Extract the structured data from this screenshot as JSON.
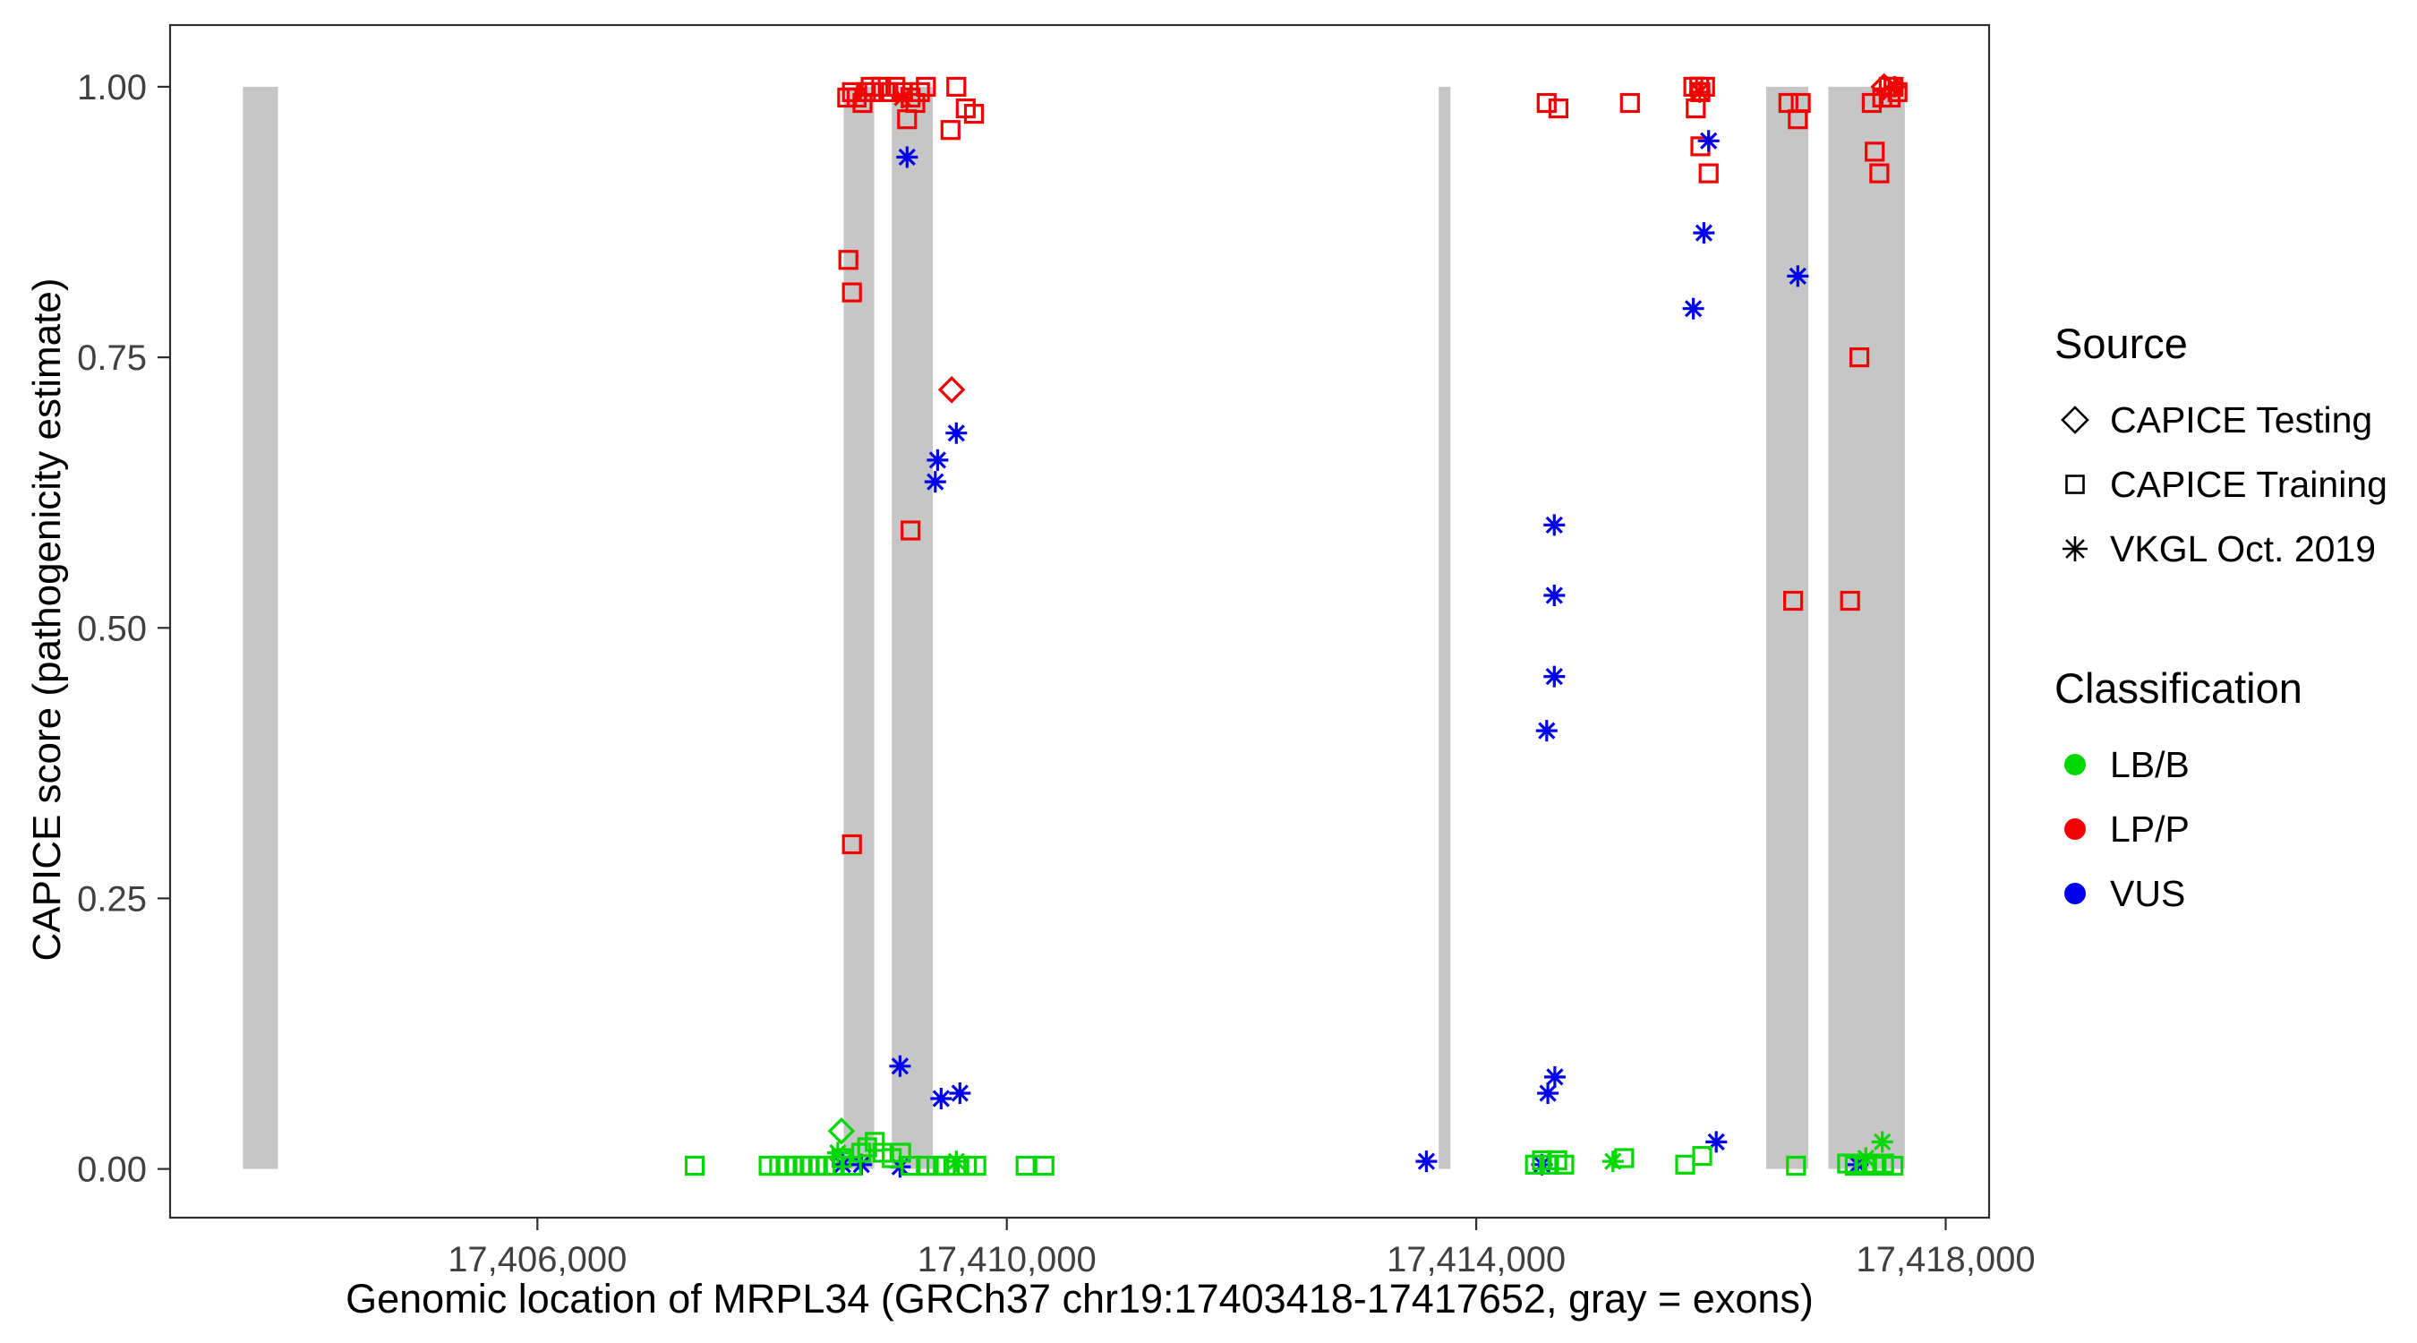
{
  "chart_data": {
    "type": "scatter",
    "title": "",
    "xlabel": "Genomic location of MRPL34 (GRCh37 chr19:17403418-17417652, gray = exons)",
    "ylabel": "CAPICE score (pathogenicity estimate)",
    "x_range": [
      17402870,
      17418370
    ],
    "y_range": [
      -0.045,
      1.057
    ],
    "x_ticks": [
      17406000,
      17410000,
      17414000,
      17418000
    ],
    "x_tick_labels": [
      "17,406,000",
      "17,410,000",
      "17,414,000",
      "17,418,000"
    ],
    "y_ticks": [
      0,
      0.25,
      0.5,
      0.75,
      1.0
    ],
    "y_tick_labels": [
      "0.00",
      "0.25",
      "0.50",
      "0.75",
      "1.00"
    ],
    "grid": false,
    "exon_color": "#C6C6C6",
    "exons": [
      [
        17403490,
        17403790
      ],
      [
        17408610,
        17408870
      ],
      [
        17409020,
        17409370
      ],
      [
        17413680,
        17413780
      ],
      [
        17416470,
        17416830
      ],
      [
        17417000,
        17417652
      ]
    ],
    "colors": {
      "LB/B": "#00D800",
      "LP/P": "#F30000",
      "VUS": "#0000EE"
    },
    "marker_by_source": {
      "testing": "diamond",
      "training": "square",
      "vkgl": "asterisk"
    },
    "points": [
      [
        17408640,
        0.99,
        "training",
        "LP/P"
      ],
      [
        17408680,
        0.995,
        "training",
        "LP/P"
      ],
      [
        17408720,
        0.99,
        "training",
        "LP/P"
      ],
      [
        17408770,
        0.985,
        "training",
        "LP/P"
      ],
      [
        17408800,
        0.995,
        "training",
        "LP/P"
      ],
      [
        17408840,
        1.0,
        "training",
        "LP/P"
      ],
      [
        17408870,
        0.995,
        "training",
        "LP/P"
      ],
      [
        17408930,
        1.0,
        "training",
        "LP/P"
      ],
      [
        17408990,
        0.995,
        "training",
        "LP/P"
      ],
      [
        17409050,
        1.0,
        "training",
        "LP/P"
      ],
      [
        17409110,
        0.995,
        "training",
        "LP/P"
      ],
      [
        17409180,
        0.99,
        "training",
        "LP/P"
      ],
      [
        17409260,
        0.995,
        "training",
        "LP/P"
      ],
      [
        17409310,
        1.0,
        "training",
        "LP/P"
      ],
      [
        17409150,
        0.97,
        "training",
        "LP/P"
      ],
      [
        17409220,
        0.985,
        "training",
        "LP/P"
      ],
      [
        17409570,
        1.0,
        "training",
        "LP/P"
      ],
      [
        17409650,
        0.98,
        "training",
        "LP/P"
      ],
      [
        17409720,
        0.975,
        "training",
        "LP/P"
      ],
      [
        17409520,
        0.96,
        "training",
        "LP/P"
      ],
      [
        17408650,
        0.84,
        "training",
        "LP/P"
      ],
      [
        17408680,
        0.81,
        "training",
        "LP/P"
      ],
      [
        17409180,
        0.59,
        "training",
        "LP/P"
      ],
      [
        17408680,
        0.3,
        "training",
        "LP/P"
      ],
      [
        17414600,
        0.985,
        "training",
        "LP/P"
      ],
      [
        17414700,
        0.98,
        "training",
        "LP/P"
      ],
      [
        17415310,
        0.985,
        "training",
        "LP/P"
      ],
      [
        17415850,
        1.0,
        "training",
        "LP/P"
      ],
      [
        17415900,
        1.0,
        "training",
        "LP/P"
      ],
      [
        17415950,
        1.0,
        "training",
        "LP/P"
      ],
      [
        17415910,
        0.995,
        "training",
        "LP/P"
      ],
      [
        17415870,
        0.98,
        "training",
        "LP/P"
      ],
      [
        17415910,
        0.945,
        "training",
        "LP/P"
      ],
      [
        17415980,
        0.92,
        "training",
        "LP/P"
      ],
      [
        17416660,
        0.985,
        "training",
        "LP/P"
      ],
      [
        17416765,
        0.985,
        "training",
        "LP/P"
      ],
      [
        17416740,
        0.97,
        "training",
        "LP/P"
      ],
      [
        17416700,
        0.525,
        "training",
        "LP/P"
      ],
      [
        17417185,
        0.525,
        "training",
        "LP/P"
      ],
      [
        17417265,
        0.75,
        "training",
        "LP/P"
      ],
      [
        17417395,
        0.94,
        "training",
        "LP/P"
      ],
      [
        17417435,
        0.92,
        "training",
        "LP/P"
      ],
      [
        17417370,
        0.985,
        "training",
        "LP/P"
      ],
      [
        17417460,
        0.99,
        "training",
        "LP/P"
      ],
      [
        17417515,
        1.0,
        "training",
        "LP/P"
      ],
      [
        17417555,
        1.0,
        "training",
        "LP/P"
      ],
      [
        17417590,
        0.995,
        "training",
        "LP/P"
      ],
      [
        17417530,
        0.99,
        "training",
        "LP/P"
      ],
      [
        17409530,
        0.72,
        "testing",
        "LP/P"
      ],
      [
        17417475,
        1.0,
        "testing",
        "LP/P"
      ],
      [
        17409110,
        0.99,
        "vkgl",
        "LP/P"
      ],
      [
        17415905,
        0.995,
        "vkgl",
        "LP/P"
      ],
      [
        17417565,
        1.0,
        "vkgl",
        "LP/P"
      ],
      [
        17409150,
        0.935,
        "vkgl",
        "VUS"
      ],
      [
        17409570,
        0.68,
        "vkgl",
        "VUS"
      ],
      [
        17409410,
        0.655,
        "vkgl",
        "VUS"
      ],
      [
        17409390,
        0.635,
        "vkgl",
        "VUS"
      ],
      [
        17409090,
        0.095,
        "vkgl",
        "VUS"
      ],
      [
        17409600,
        0.07,
        "vkgl",
        "VUS"
      ],
      [
        17409440,
        0.065,
        "vkgl",
        "VUS"
      ],
      [
        17408600,
        0.004,
        "vkgl",
        "VUS"
      ],
      [
        17408760,
        0.004,
        "vkgl",
        "VUS"
      ],
      [
        17409090,
        0.002,
        "vkgl",
        "VUS"
      ],
      [
        17413575,
        0.007,
        "vkgl",
        "VUS"
      ],
      [
        17414665,
        0.595,
        "vkgl",
        "VUS"
      ],
      [
        17414665,
        0.53,
        "vkgl",
        "VUS"
      ],
      [
        17414665,
        0.455,
        "vkgl",
        "VUS"
      ],
      [
        17414600,
        0.405,
        "vkgl",
        "VUS"
      ],
      [
        17414670,
        0.085,
        "vkgl",
        "VUS"
      ],
      [
        17414610,
        0.07,
        "vkgl",
        "VUS"
      ],
      [
        17414560,
        0.004,
        "vkgl",
        "VUS"
      ],
      [
        17415980,
        0.95,
        "vkgl",
        "VUS"
      ],
      [
        17415940,
        0.865,
        "vkgl",
        "VUS"
      ],
      [
        17415850,
        0.795,
        "vkgl",
        "VUS"
      ],
      [
        17416045,
        0.025,
        "vkgl",
        "VUS"
      ],
      [
        17416740,
        0.825,
        "vkgl",
        "VUS"
      ],
      [
        17417250,
        0.004,
        "vkgl",
        "VUS"
      ],
      [
        17407340,
        0.003,
        "training",
        "LB/B"
      ],
      [
        17407970,
        0.003,
        "training",
        "LB/B"
      ],
      [
        17408060,
        0.003,
        "training",
        "LB/B"
      ],
      [
        17408130,
        0.003,
        "training",
        "LB/B"
      ],
      [
        17408190,
        0.003,
        "training",
        "LB/B"
      ],
      [
        17408260,
        0.003,
        "training",
        "LB/B"
      ],
      [
        17408320,
        0.003,
        "training",
        "LB/B"
      ],
      [
        17408390,
        0.003,
        "training",
        "LB/B"
      ],
      [
        17408455,
        0.003,
        "training",
        "LB/B"
      ],
      [
        17408520,
        0.003,
        "training",
        "LB/B"
      ],
      [
        17408590,
        0.01,
        "training",
        "LB/B"
      ],
      [
        17408680,
        0.003,
        "training",
        "LB/B"
      ],
      [
        17408760,
        0.015,
        "training",
        "LB/B"
      ],
      [
        17408810,
        0.02,
        "training",
        "LB/B"
      ],
      [
        17408875,
        0.025,
        "training",
        "LB/B"
      ],
      [
        17408940,
        0.015,
        "training",
        "LB/B"
      ],
      [
        17409020,
        0.01,
        "training",
        "LB/B"
      ],
      [
        17409100,
        0.015,
        "training",
        "LB/B"
      ],
      [
        17409180,
        0.003,
        "training",
        "LB/B"
      ],
      [
        17409310,
        0.003,
        "training",
        "LB/B"
      ],
      [
        17409400,
        0.003,
        "training",
        "LB/B"
      ],
      [
        17409480,
        0.003,
        "training",
        "LB/B"
      ],
      [
        17409570,
        0.003,
        "training",
        "LB/B"
      ],
      [
        17409660,
        0.003,
        "training",
        "LB/B"
      ],
      [
        17409740,
        0.003,
        "training",
        "LB/B"
      ],
      [
        17410160,
        0.003,
        "training",
        "LB/B"
      ],
      [
        17410320,
        0.003,
        "training",
        "LB/B"
      ],
      [
        17414500,
        0.004,
        "training",
        "LB/B"
      ],
      [
        17414560,
        0.008,
        "training",
        "LB/B"
      ],
      [
        17414620,
        0.004,
        "training",
        "LB/B"
      ],
      [
        17414690,
        0.008,
        "training",
        "LB/B"
      ],
      [
        17414750,
        0.004,
        "training",
        "LB/B"
      ],
      [
        17415260,
        0.01,
        "training",
        "LB/B"
      ],
      [
        17415780,
        0.004,
        "training",
        "LB/B"
      ],
      [
        17415925,
        0.012,
        "training",
        "LB/B"
      ],
      [
        17416725,
        0.003,
        "training",
        "LB/B"
      ],
      [
        17417160,
        0.005,
        "training",
        "LB/B"
      ],
      [
        17417225,
        0.003,
        "training",
        "LB/B"
      ],
      [
        17417315,
        0.005,
        "training",
        "LB/B"
      ],
      [
        17417395,
        0.003,
        "training",
        "LB/B"
      ],
      [
        17417475,
        0.005,
        "training",
        "LB/B"
      ],
      [
        17417555,
        0.003,
        "training",
        "LB/B"
      ],
      [
        17408590,
        0.035,
        "testing",
        "LB/B"
      ],
      [
        17408560,
        0.015,
        "vkgl",
        "LB/B"
      ],
      [
        17409570,
        0.007,
        "vkgl",
        "LB/B"
      ],
      [
        17415165,
        0.007,
        "vkgl",
        "LB/B"
      ],
      [
        17417460,
        0.025,
        "vkgl",
        "LB/B"
      ],
      [
        17417320,
        0.01,
        "vkgl",
        "LB/B"
      ]
    ]
  },
  "legend": {
    "source": {
      "title": "Source",
      "items": [
        {
          "label": "CAPICE Testing",
          "shape": "diamond"
        },
        {
          "label": "CAPICE Training",
          "shape": "square"
        },
        {
          "label": "VKGL Oct. 2019",
          "shape": "asterisk"
        }
      ]
    },
    "classification": {
      "title": "Classification",
      "items": [
        {
          "label": "LB/B",
          "color": "#00D800"
        },
        {
          "label": "LP/P",
          "color": "#F30000"
        },
        {
          "label": "VUS",
          "color": "#0000EE"
        }
      ]
    }
  }
}
